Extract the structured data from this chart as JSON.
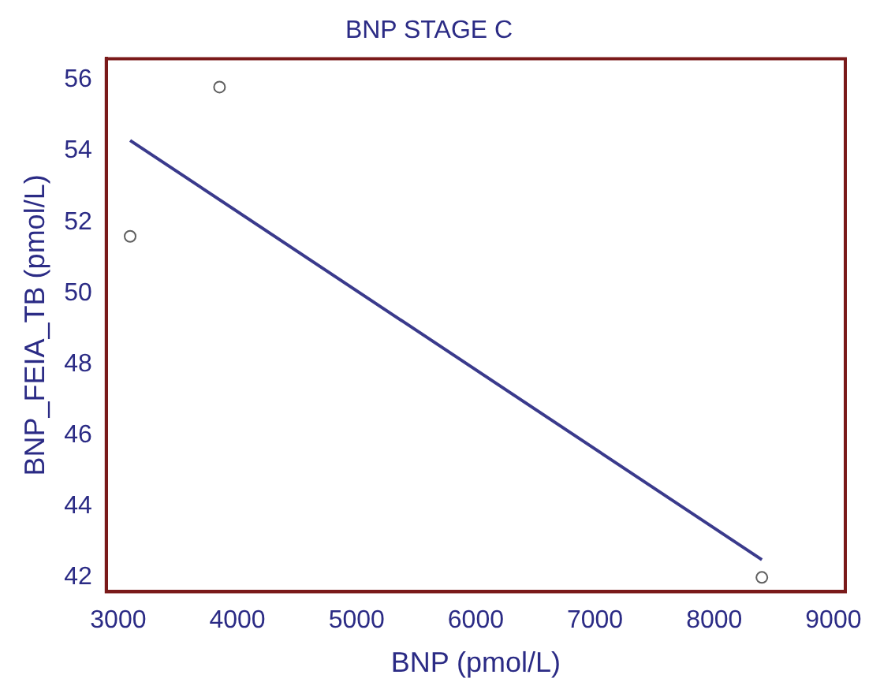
{
  "chart_data": {
    "type": "scatter",
    "title": "BNP STAGE C",
    "xlabel": "BNP (pmol/L)",
    "ylabel": "BNP_FEIA_TB (pmol/L)",
    "xlim": [
      2900,
      9100
    ],
    "xticks": [
      3000,
      4000,
      5000,
      6000,
      7000,
      8000,
      9000
    ],
    "ylim": [
      41.6,
      56.6
    ],
    "yticks": [
      42,
      44,
      46,
      48,
      50,
      52,
      54,
      56
    ],
    "grid": false,
    "series": [
      {
        "type": "scatter",
        "marker": "circle",
        "color": "#606060",
        "x": [
          3100,
          3850,
          8400
        ],
        "values": [
          51.6,
          55.8,
          42.0
        ]
      },
      {
        "type": "line",
        "color": "#3a3a8c",
        "x": [
          3100,
          8400
        ],
        "values": [
          54.3,
          42.5
        ]
      }
    ]
  }
}
